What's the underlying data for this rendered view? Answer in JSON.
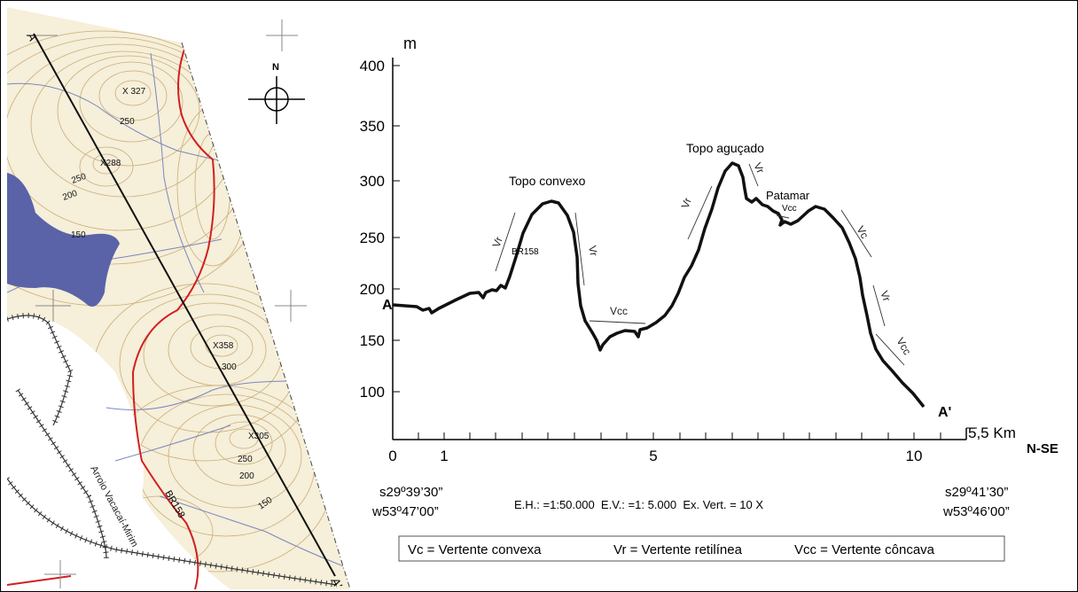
{
  "colors": {
    "contour": "#c9ad7a",
    "map_fill": "#f6efd9",
    "water": "#5a63a8",
    "stream": "#7a86bf",
    "road": "#d21f1f",
    "rail": "#333333",
    "profile": "#111111"
  },
  "map": {
    "profile_start": "A",
    "profile_end": "A'",
    "north": "N",
    "points": [
      {
        "label": "X 327"
      },
      {
        "label": "X288"
      },
      {
        "label": "X358"
      },
      {
        "label": "X305"
      }
    ],
    "contour_labels": [
      "250",
      "250",
      "200",
      "150",
      "300",
      "250",
      "200",
      "150"
    ],
    "road_label": "BR158",
    "river_label": "Arroio Vacacaí-Mirim"
  },
  "profile": {
    "y_unit": "m",
    "y_ticks": [
      "400",
      "350",
      "300",
      "250",
      "200",
      "150",
      "100"
    ],
    "x_ticks": [
      "0",
      "1",
      "5",
      "10"
    ],
    "x_end": "5,5 Km",
    "direction": "N-SE",
    "start": "A",
    "end": "A'",
    "features": {
      "topo_convexo": "Topo convexo",
      "topo_agucado": "Topo aguçado",
      "patamar": "Patamar",
      "br158": "BR158",
      "vcc_top": "Vcc"
    },
    "slopes": [
      "Vr",
      "Vr",
      "Vcc",
      "Vr",
      "Vr",
      "Vcc",
      "Vc",
      "Vr",
      "Vcc"
    ],
    "coords_left": [
      "s29º39’30”",
      "w53º47’00”"
    ],
    "coords_right": [
      "s29º41’30”",
      "w53º46’00”"
    ],
    "scale_line": "E.H.: =1:50.000  E.V.: =1: 5.000  Ex. Vert. = 10 X"
  },
  "legend": {
    "vc": "Vc = Vertente convexa",
    "vr": "Vr = Vertente retilínea",
    "vcc": "Vcc = Vertente côncava"
  }
}
